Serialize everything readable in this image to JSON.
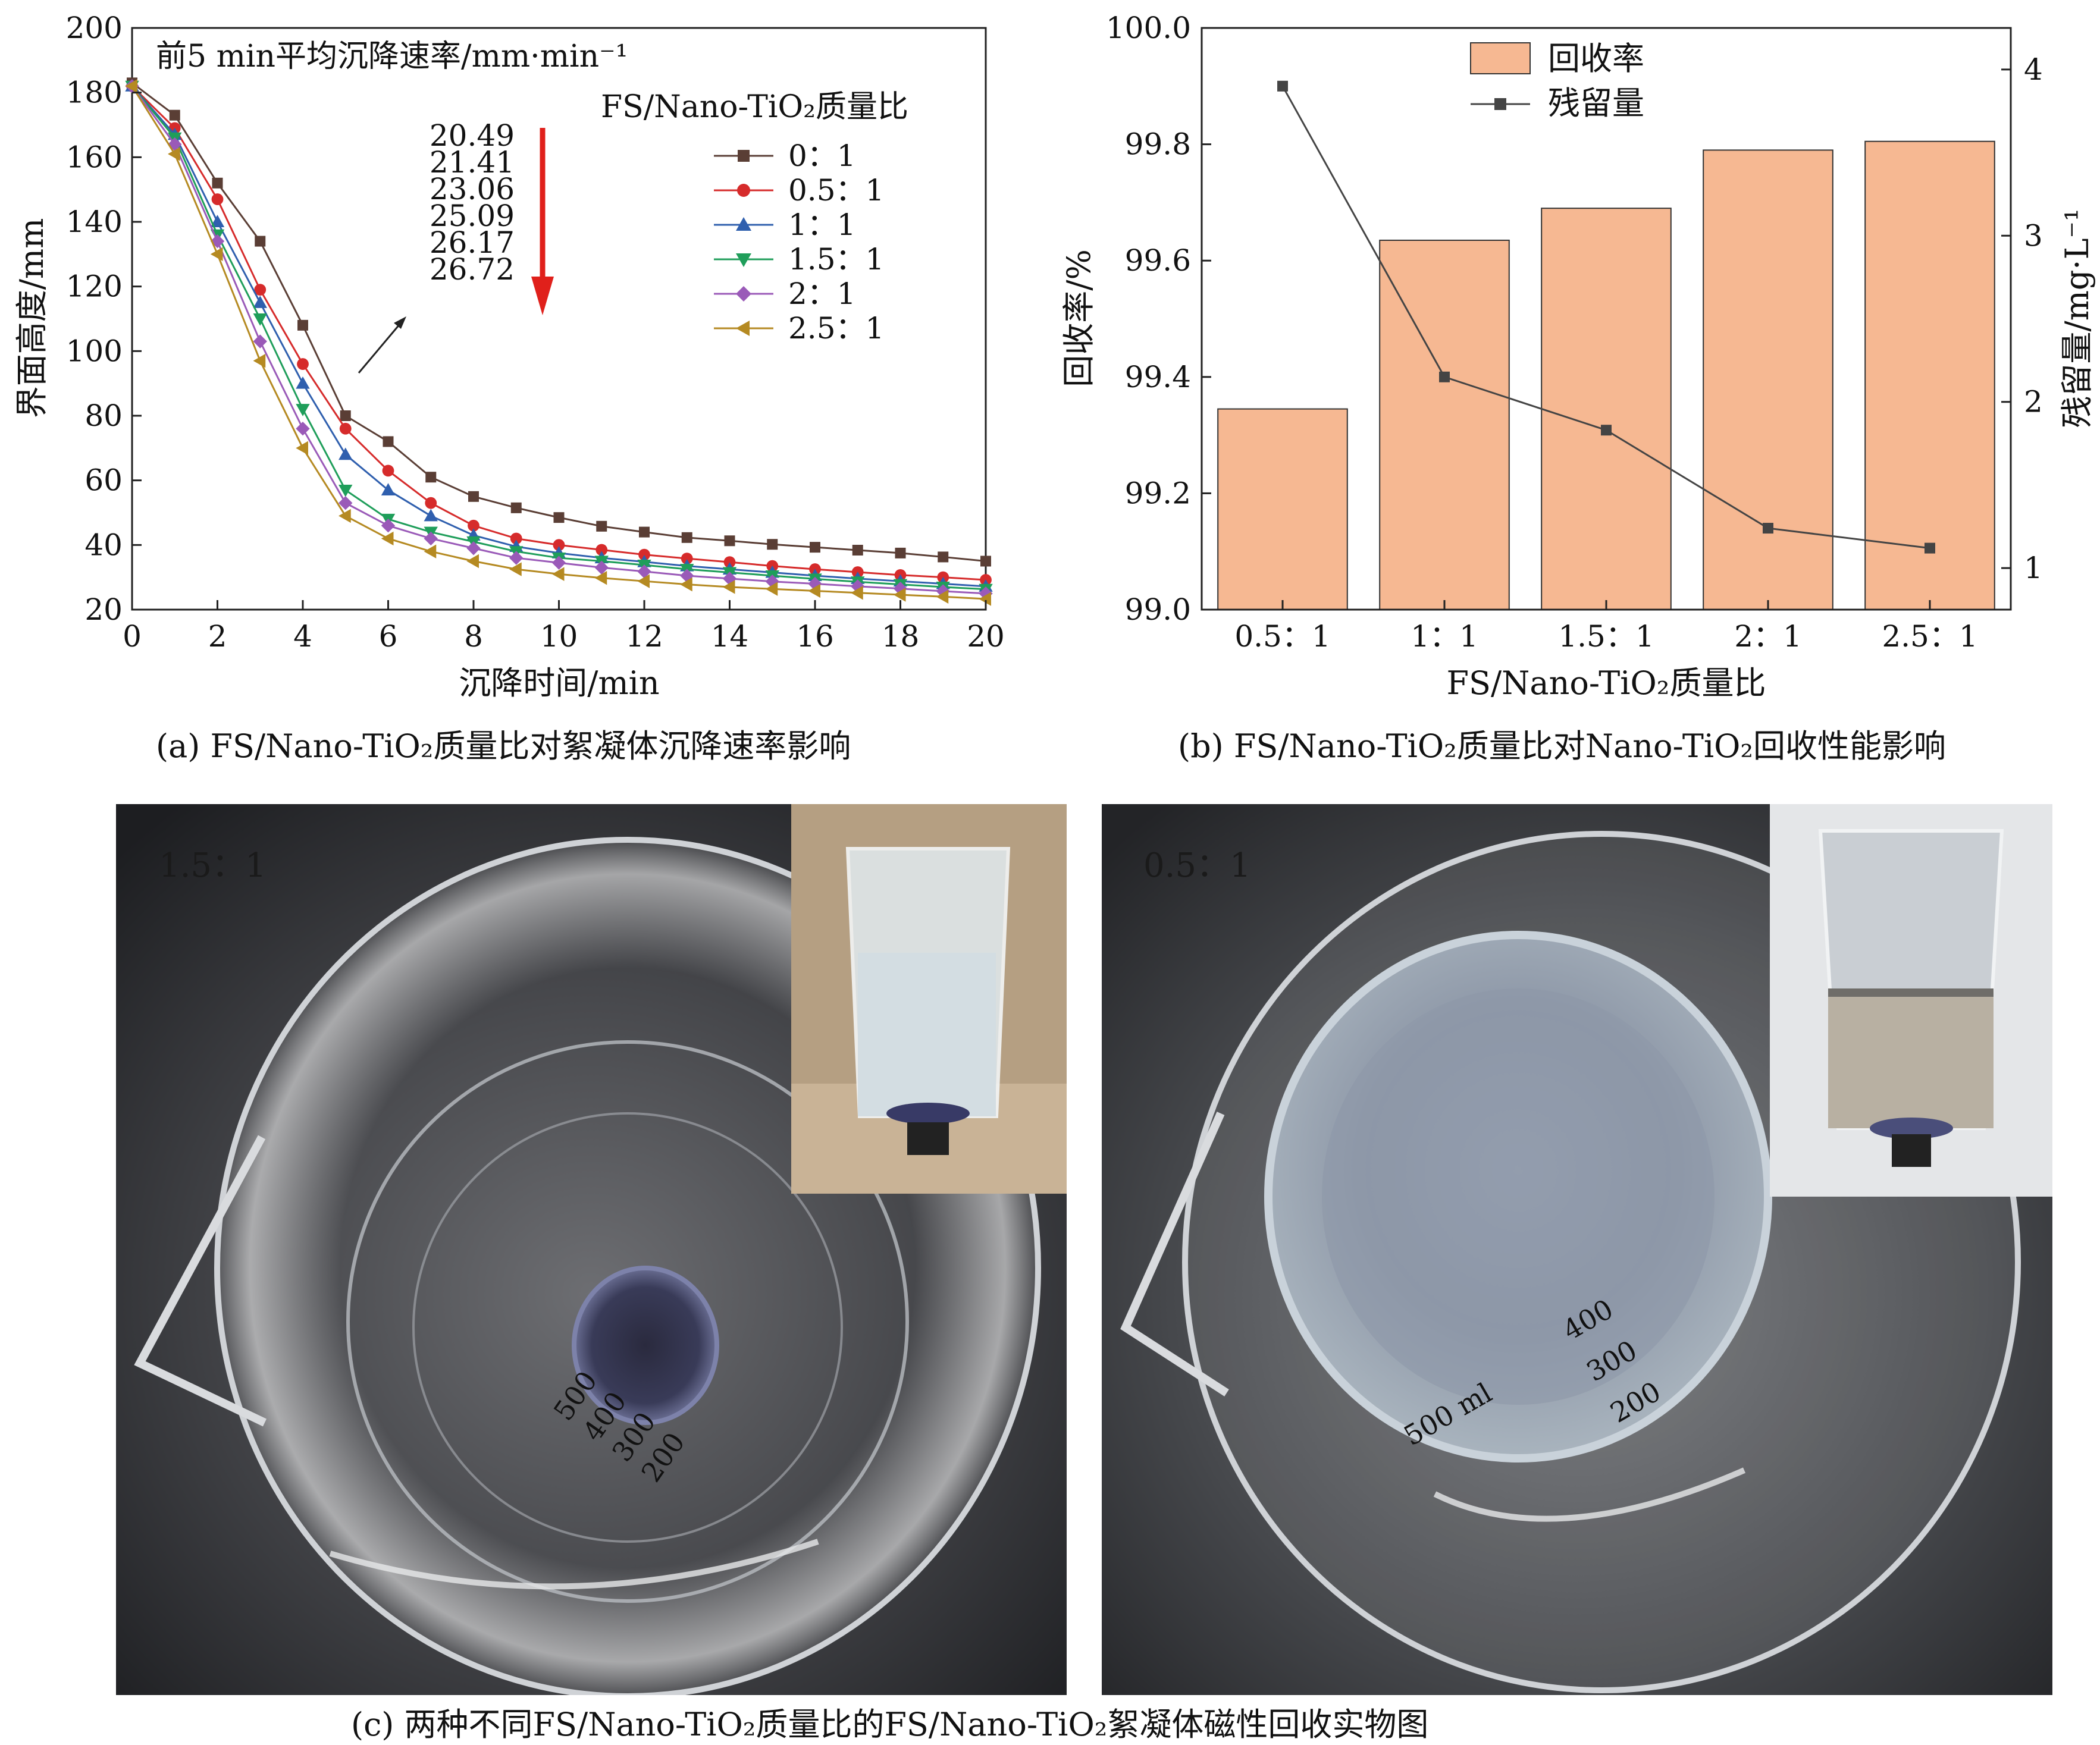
{
  "chart_data": [
    {
      "type": "line",
      "id": "a",
      "annotation_title": "前5 min平均沉降速率/mm·min⁻¹",
      "annotation_values": [
        "20.49",
        "21.41",
        "23.06",
        "25.09",
        "26.17",
        "26.72"
      ],
      "legend_title": "FS/Nano-TiO₂质量比",
      "xlabel": "沉降时间/min",
      "ylabel": "界面高度/mm",
      "xlim": [
        0,
        20
      ],
      "ylim": [
        20,
        200
      ],
      "xticks": [
        "0",
        "2",
        "4",
        "6",
        "8",
        "10",
        "12",
        "14",
        "16",
        "18",
        "20"
      ],
      "yticks": [
        "20",
        "40",
        "60",
        "80",
        "100",
        "120",
        "140",
        "160",
        "180",
        "200"
      ],
      "x": [
        0,
        1,
        2,
        3,
        4,
        5,
        6,
        7,
        8,
        9,
        10,
        11,
        12,
        13,
        14,
        15,
        16,
        17,
        18,
        19,
        20
      ],
      "series": [
        {
          "name": "0：1",
          "color": "#5a3e35",
          "marker": "square",
          "values": [
            183,
            173,
            152,
            134,
            108,
            80,
            72,
            61,
            55,
            51.5,
            48.5,
            45.8,
            44,
            42.3,
            41.3,
            40.2,
            39.3,
            38.4,
            37.5,
            36.3,
            35
          ]
        },
        {
          "name": "0.5：1",
          "color": "#d62b2b",
          "marker": "circle",
          "values": [
            182,
            169,
            147,
            119,
            96,
            76,
            63,
            53,
            46,
            42,
            40,
            38.5,
            37,
            35.8,
            34.7,
            33.5,
            32.5,
            31.6,
            30.7,
            30,
            29.2
          ]
        },
        {
          "name": "1：1",
          "color": "#2f5fae",
          "marker": "triangle-up",
          "values": [
            182,
            167,
            140,
            115,
            90,
            68,
            57,
            49,
            43,
            39.5,
            37.5,
            36,
            34.8,
            33.5,
            32.5,
            31.5,
            30.5,
            29.6,
            28.8,
            28,
            27.2
          ]
        },
        {
          "name": "1.5：1",
          "color": "#1f9e5a",
          "marker": "triangle-down",
          "values": [
            182,
            166,
            136,
            110,
            82,
            57,
            48,
            44,
            41,
            38,
            36,
            35,
            33.8,
            32.5,
            31.5,
            30.5,
            29.5,
            28.6,
            27.8,
            27,
            26.3
          ]
        },
        {
          "name": "2：1",
          "color": "#9a5ab8",
          "marker": "diamond",
          "values": [
            182,
            164,
            134,
            103,
            76,
            53,
            46,
            42,
            39,
            36,
            34.5,
            33,
            31.8,
            30.5,
            29.6,
            28.7,
            28,
            27.2,
            26.5,
            25.7,
            25
          ]
        },
        {
          "name": "2.5：1",
          "color": "#b58a22",
          "marker": "triangle-left",
          "values": [
            182,
            161,
            130,
            97,
            70,
            49,
            42,
            38,
            35,
            32.5,
            31,
            29.8,
            28.8,
            27.8,
            27,
            26.4,
            25.8,
            25.2,
            24.6,
            24,
            23.3
          ]
        }
      ],
      "caption": "(a) FS/Nano-TiO₂质量比对絮凝体沉降速率影响"
    },
    {
      "type": "bar",
      "id": "b",
      "categories": [
        "0.5：1",
        "1：1",
        "1.5：1",
        "2：1",
        "2.5：1"
      ],
      "series": [
        {
          "name": "回收率",
          "axis": "left",
          "color": "#f6b892",
          "values": [
            99.345,
            99.635,
            99.69,
            99.79,
            99.805
          ]
        },
        {
          "name": "残留量",
          "axis": "right",
          "type": "line",
          "color": "#444444",
          "marker": "square",
          "values": [
            3.9,
            2.15,
            1.83,
            1.24,
            1.12
          ]
        }
      ],
      "xlabel": "FS/Nano-TiO₂质量比",
      "ylabel": "回收率/%",
      "ylabel_right": "残留量/mg·L⁻¹",
      "ylim": [
        99.0,
        100.0
      ],
      "ylim_right": [
        0.75,
        4.25
      ],
      "yticks": [
        "99.0",
        "99.2",
        "99.4",
        "99.6",
        "99.8",
        "100.0"
      ],
      "yticks_right": [
        "1",
        "2",
        "3",
        "4"
      ],
      "caption": "(b) FS/Nano-TiO₂质量比对Nano-TiO₂回收性能影响"
    }
  ],
  "photos": {
    "left_label": "1.5：1",
    "right_label": "0.5：1",
    "left_beaker_marks": [
      "500",
      "400",
      "300",
      "200"
    ],
    "right_beaker_marks": [
      "500 ml",
      "400",
      "300",
      "200"
    ],
    "caption": "(c) 两种不同FS/Nano-TiO₂质量比的FS/Nano-TiO₂絮凝体磁性回收实物图"
  }
}
